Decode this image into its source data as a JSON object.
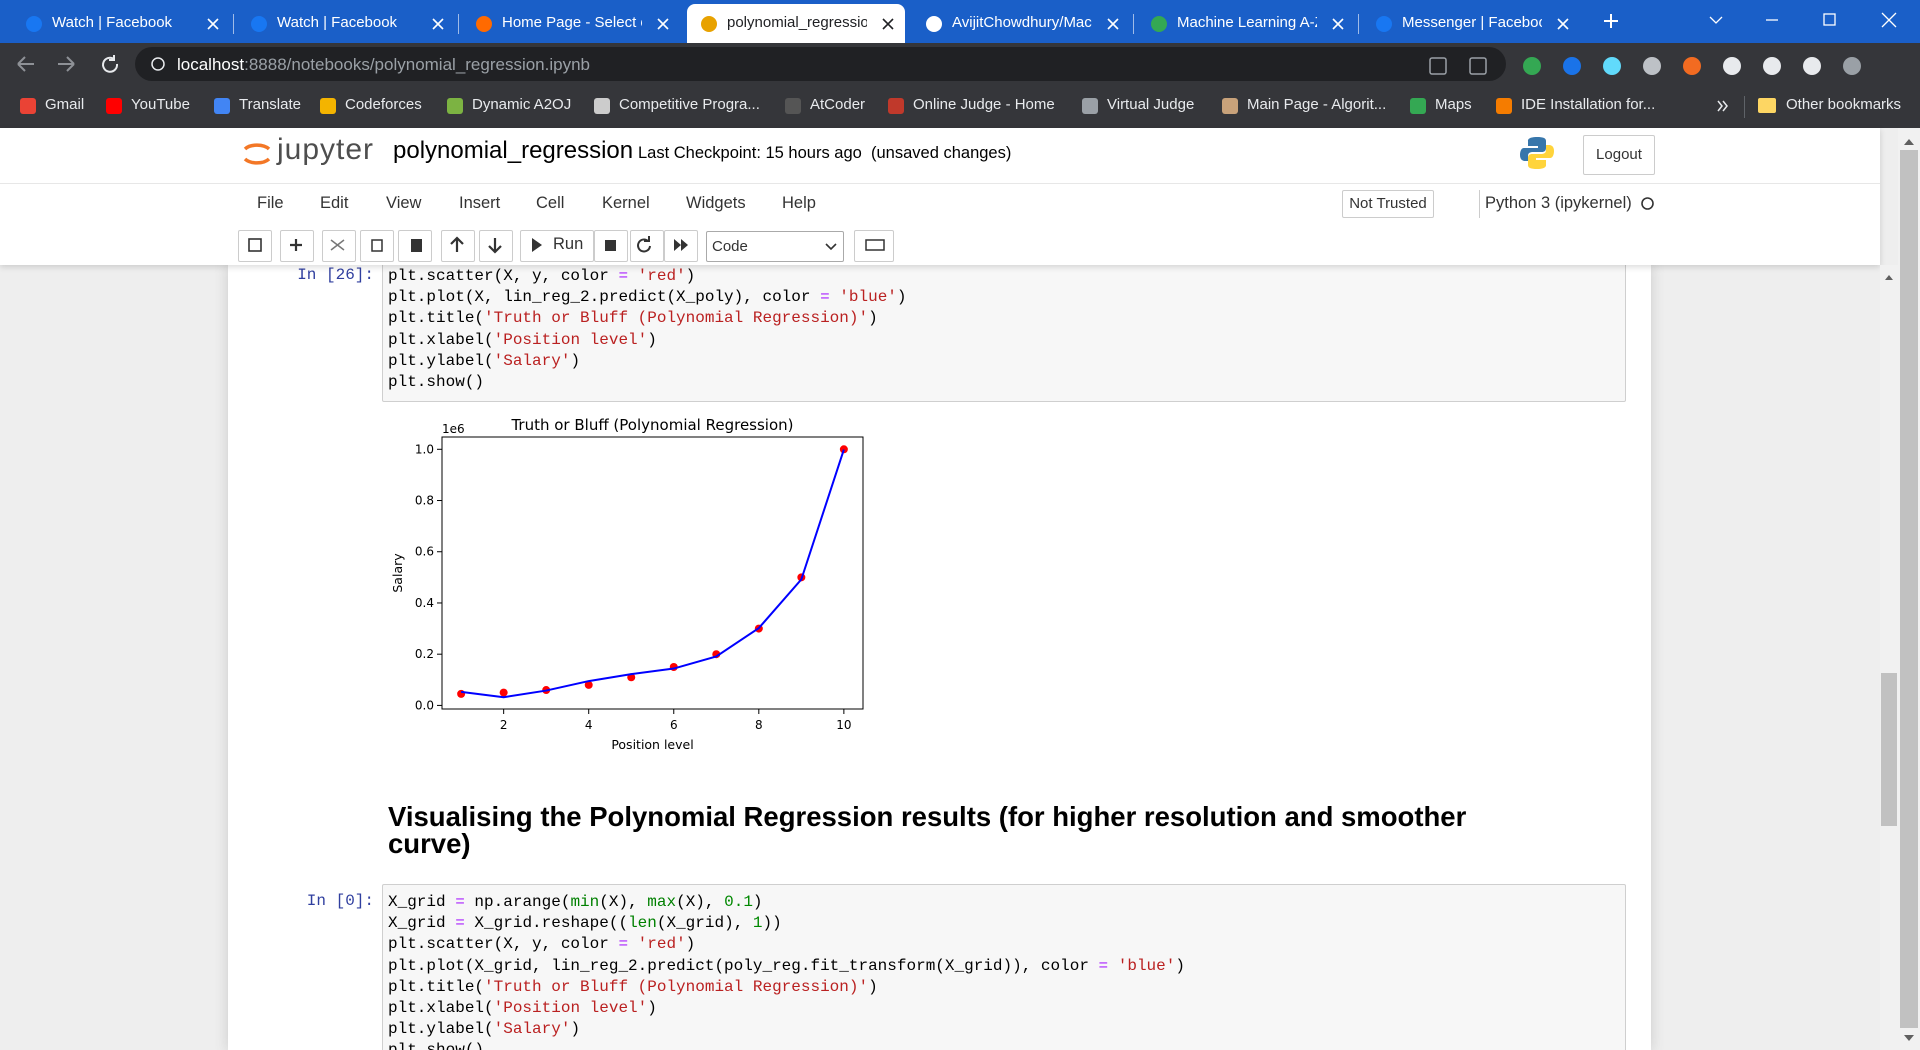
{
  "browser": {
    "tabs": [
      "Watch | Facebook",
      "Watch | Facebook",
      "Home Page - Select o",
      "polynomial_regressio",
      "AvijitChowdhury/Mac",
      "Machine Learning A-Z",
      "Messenger | Faceboo"
    ],
    "active_tab": 3,
    "url_host": "localhost",
    "url_path": ":8888/notebooks/polynomial_regression.ipynb",
    "bookmarks": [
      "Gmail",
      "YouTube",
      "Translate",
      "Codeforces",
      "Dynamic A2OJ",
      "Competitive Progra...",
      "AtCoder",
      "Online Judge - Home",
      "Virtual Judge",
      "Main Page - Algorit...",
      "Maps",
      "IDE Installation for..."
    ],
    "other_bookmarks": "Other bookmarks"
  },
  "jupyter": {
    "logo": "jupyter",
    "notebook_name": "polynomial_regression",
    "checkpoint": "Last Checkpoint: 15 hours ago",
    "status": "(unsaved changes)",
    "logout": "Logout",
    "menu": [
      "File",
      "Edit",
      "View",
      "Insert",
      "Cell",
      "Kernel",
      "Widgets",
      "Help"
    ],
    "trusted": "Not Trusted",
    "kernel": "Python 3 (ipykernel)",
    "run": "Run",
    "cell_type": "Code"
  },
  "cells": [
    {
      "prompt": "In [26]:",
      "lines": [
        "plt.scatter(X, y, color = 'red')",
        "plt.plot(X, lin_reg_2.predict(X_poly), color = 'blue')",
        "plt.title('Truth or Bluff (Polynomial Regression)')",
        "plt.xlabel('Position level')",
        "plt.ylabel('Salary')",
        "plt.show()"
      ]
    },
    {
      "heading": "Visualising the Polynomial Regression results (for higher resolution and smoother curve)"
    },
    {
      "prompt": "In [0]:",
      "lines": [
        "X_grid = np.arange(min(X), max(X), 0.1)",
        "X_grid = X_grid.reshape((len(X_grid), 1))",
        "plt.scatter(X, y, color = 'red')",
        "plt.plot(X_grid, lin_reg_2.predict(poly_reg.fit_transform(X_grid)), color = 'blue')",
        "plt.title('Truth or Bluff (Polynomial Regression)')",
        "plt.xlabel('Position level')",
        "plt.ylabel('Salary')",
        "plt.show()"
      ]
    }
  ],
  "chart_data": {
    "type": "scatter",
    "title": "Truth or Bluff (Polynomial Regression)",
    "x_label": "Position level",
    "y_label": "Salary",
    "y_offset_label": "1e6",
    "x": [
      1,
      2,
      3,
      4,
      5,
      6,
      7,
      8,
      9,
      10
    ],
    "series": [
      {
        "style": "marker",
        "color": "#ff0000",
        "values": [
          0.045,
          0.05,
          0.06,
          0.08,
          0.11,
          0.15,
          0.2,
          0.3,
          0.5,
          1.0
        ]
      },
      {
        "style": "line",
        "color": "#0000ff",
        "values": [
          0.053,
          0.032,
          0.058,
          0.095,
          0.122,
          0.144,
          0.191,
          0.302,
          0.492,
          0.999
        ]
      }
    ],
    "xlim": [
      0.55,
      10.45
    ],
    "ylim": [
      -0.014,
      1.048
    ],
    "xticks": [
      2,
      4,
      6,
      8,
      10
    ],
    "yticks": [
      {
        "value": 0,
        "label": "0.0"
      },
      0.2,
      0.4,
      0.6,
      0.8,
      {
        "value": 1,
        "label": "1.0"
      }
    ],
    "grid": false
  }
}
